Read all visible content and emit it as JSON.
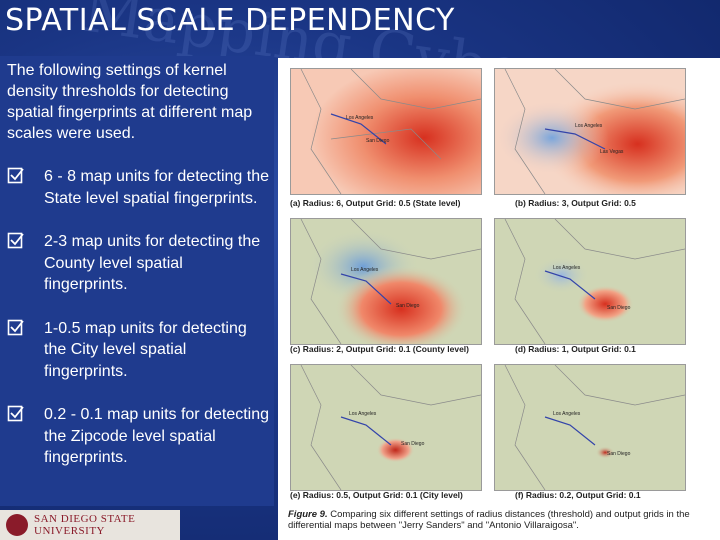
{
  "slide": {
    "title": "SPATIAL SCALE DEPENDENCY",
    "intro": "The following settings of kernel density thresholds for detecting spatial fingerprints at different map scales were used.",
    "bullets": [
      "6 - 8 map units for detecting the State level spatial fingerprints.",
      "2-3 map units for detecting the County level spatial fingerprints.",
      "1-0.5 map units for detecting the City level spatial fingerprints.",
      "0.2 - 0.1 map units for detecting the Zipcode level spatial fingerprints."
    ],
    "bullet_icon": "checkbox-icon"
  },
  "figure": {
    "panels": [
      {
        "caption": "(a) Radius: 6, Output Grid: 0.5 (State level)",
        "city1": "Los Angeles",
        "city2": "San Diego"
      },
      {
        "caption": "(b) Radius: 3, Output Grid: 0.5",
        "city1": "Los Angeles",
        "city2": "Las Vegas"
      },
      {
        "caption": "(c) Radius: 2, Output Grid: 0.1 (County level)",
        "city1": "Los Angeles",
        "city2": "San Diego"
      },
      {
        "caption": "(d) Radius: 1, Output Grid: 0.1",
        "city1": "Los Angeles",
        "city2": "San Diego"
      },
      {
        "caption": "(e) Radius: 0.5, Output Grid: 0.1 (City level)",
        "city1": "Los Angeles",
        "city2": "San Diego"
      },
      {
        "caption": "(f) Radius: 0.2, Output Grid: 0.1",
        "city1": "Los Angeles",
        "city2": "San Diego"
      }
    ],
    "figure_label": "Figure 9.",
    "figure_text": "Comparing six different settings of radius distances (threshold) and output grids in the differential maps between \"Jerry Sanders\" and \"Antonio Villaraigosa\"."
  },
  "logo": {
    "line1": "SAN DIEGO STATE",
    "line2": "UNIVERSITY"
  },
  "colors": {
    "background": "#1a3584",
    "hot": "#d7301f",
    "cold": "#6f9fd8",
    "land": "#cfd6b5"
  }
}
